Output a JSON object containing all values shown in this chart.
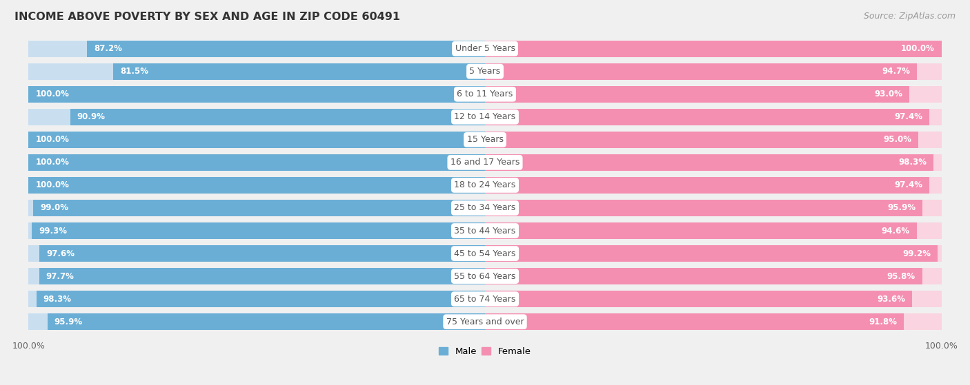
{
  "title": "INCOME ABOVE POVERTY BY SEX AND AGE IN ZIP CODE 60491",
  "source": "Source: ZipAtlas.com",
  "categories": [
    "Under 5 Years",
    "5 Years",
    "6 to 11 Years",
    "12 to 14 Years",
    "15 Years",
    "16 and 17 Years",
    "18 to 24 Years",
    "25 to 34 Years",
    "35 to 44 Years",
    "45 to 54 Years",
    "55 to 64 Years",
    "65 to 74 Years",
    "75 Years and over"
  ],
  "male_values": [
    87.2,
    81.5,
    100.0,
    90.9,
    100.0,
    100.0,
    100.0,
    99.0,
    99.3,
    97.6,
    97.7,
    98.3,
    95.9
  ],
  "female_values": [
    100.0,
    94.7,
    93.0,
    97.4,
    95.0,
    98.3,
    97.4,
    95.9,
    94.6,
    99.2,
    95.8,
    93.6,
    91.8
  ],
  "male_color": "#6aaed6",
  "female_color": "#f48fb1",
  "male_bg_color": "#c9dff0",
  "female_bg_color": "#fad4e0",
  "male_label": "Male",
  "female_label": "Female",
  "bg_color": "#f0f0f0",
  "row_bg_color": "#f8f8f8",
  "value_text_color": "#ffffff",
  "category_text_color": "#555555",
  "title_color": "#333333",
  "source_color": "#999999",
  "bottom_label_color": "#666666",
  "title_fontsize": 11.5,
  "source_fontsize": 9,
  "value_fontsize": 8.5,
  "legend_fontsize": 9.5,
  "category_label_fontsize": 9,
  "bottom_label": "100.0%"
}
